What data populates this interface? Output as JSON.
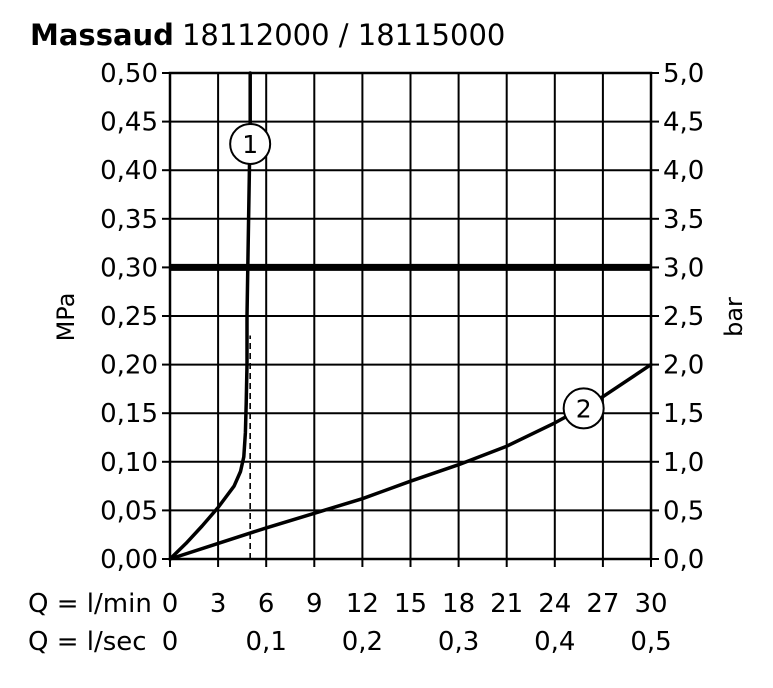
{
  "title": {
    "brand": "Massaud",
    "models": "18112000 / 18115000"
  },
  "chart_data": {
    "type": "line",
    "title": "Massaud 18112000 / 18115000",
    "xlabel_primary": "Q = l/min",
    "xlabel_secondary": "Q = l/sec",
    "ylabel_left": "MPa",
    "ylabel_right": "bar",
    "xlim": [
      0,
      30
    ],
    "ylim": [
      0,
      0.5
    ],
    "x_ticks": [
      0,
      3,
      6,
      9,
      12,
      15,
      18,
      21,
      24,
      27,
      30
    ],
    "x_tick_labels": [
      "0",
      "3",
      "6",
      "9",
      "12",
      "15",
      "18",
      "21",
      "24",
      "27",
      "30"
    ],
    "x2_ticks": [
      0,
      6,
      12,
      18,
      24,
      30
    ],
    "x2_tick_labels": [
      "0",
      "0,1",
      "0,2",
      "0,3",
      "0,4",
      "0,5"
    ],
    "y_ticks": [
      0,
      0.05,
      0.1,
      0.15,
      0.2,
      0.25,
      0.3,
      0.35,
      0.4,
      0.45,
      0.5
    ],
    "y_tick_labels_left": [
      "0,00",
      "0,05",
      "0,10",
      "0,15",
      "0,20",
      "0,25",
      "0,30",
      "0,35",
      "0,40",
      "0,45",
      "0,50"
    ],
    "y_tick_labels_right": [
      "0,0",
      "0,5",
      "1,0",
      "1,5",
      "2,0",
      "2,5",
      "3,0",
      "3,5",
      "4,0",
      "4,5",
      "5,0"
    ],
    "grid": true,
    "reference_line": {
      "y": 0.3,
      "label": "0,30"
    },
    "dashed_marker": {
      "x": 5,
      "y_from": 0,
      "y_to": 0.23
    },
    "series": [
      {
        "name": "1",
        "x": [
          0,
          1,
          2,
          3,
          4,
          4.4,
          4.6,
          4.7,
          4.75,
          4.8,
          4.8,
          4.85,
          4.9,
          4.95,
          5.0,
          5.0
        ],
        "y": [
          0,
          0.016,
          0.034,
          0.053,
          0.075,
          0.09,
          0.105,
          0.13,
          0.16,
          0.2,
          0.25,
          0.3,
          0.35,
          0.4,
          0.45,
          0.5
        ]
      },
      {
        "name": "2",
        "x": [
          0,
          3,
          6,
          9,
          12,
          15,
          18,
          21,
          24,
          27,
          30
        ],
        "y": [
          0,
          0.016,
          0.032,
          0.047,
          0.062,
          0.08,
          0.097,
          0.116,
          0.14,
          0.167,
          0.2
        ]
      }
    ],
    "series_markers": [
      {
        "label": "1",
        "x": 5.0,
        "y": 0.427
      },
      {
        "label": "2",
        "x": 25.8,
        "y": 0.155
      }
    ]
  }
}
